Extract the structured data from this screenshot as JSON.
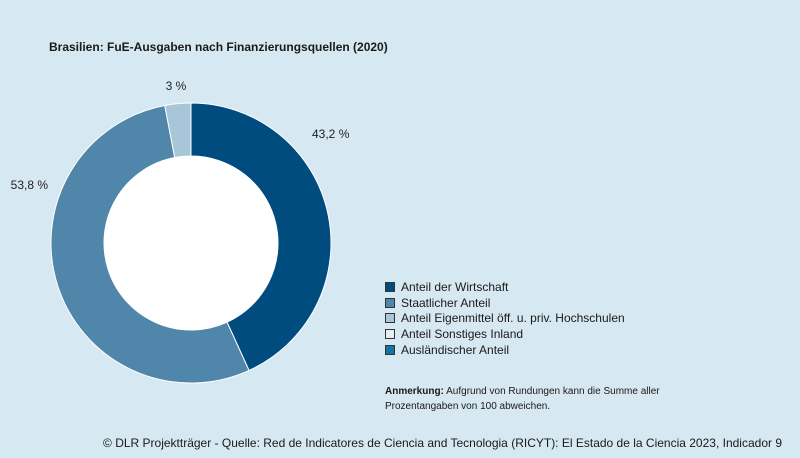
{
  "chart_data": {
    "type": "pie",
    "title": "Brasilien: FuE-Ausgaben nach Finanzierungsquellen (2020)",
    "unit": "%",
    "slices": [
      {
        "name": "Anteil der Wirtschaft",
        "value": 43.2,
        "label": "43,2 %",
        "color": "#004c7f"
      },
      {
        "name": "Staatlicher Anteil",
        "value": 53.8,
        "label": "53,8 %",
        "color": "#4f86aa"
      },
      {
        "name": "Anteil Eigenmittel öff. u. priv. Hochschulen",
        "value": 3.0,
        "label": "3 %",
        "color": "#a7c6d8"
      }
    ],
    "legend": [
      {
        "label": "Anteil der Wirtschaft",
        "color": "#004c7f"
      },
      {
        "label": "Staatlicher Anteil",
        "color": "#4f86aa"
      },
      {
        "label": "Anteil Eigenmittel öff. u. priv. Hochschulen",
        "color": "#a7c6d8"
      },
      {
        "label": "Anteil Sonstiges Inland",
        "color": "#e6eef3"
      },
      {
        "label": "Ausländischer Anteil",
        "color": "#1574a2"
      }
    ],
    "legend_position": "bottom-right"
  },
  "note": {
    "label": "Anmerkung:",
    "text": "Aufgrund von Rundungen kann die Summe aller Prozentangaben von 100 abweichen."
  },
  "source": "© DLR Projektträger - Quelle: Red de Indicatores de Ciencia and Tecnologia (RICYT): El Estado de la Ciencia 2023, Indicador 9"
}
